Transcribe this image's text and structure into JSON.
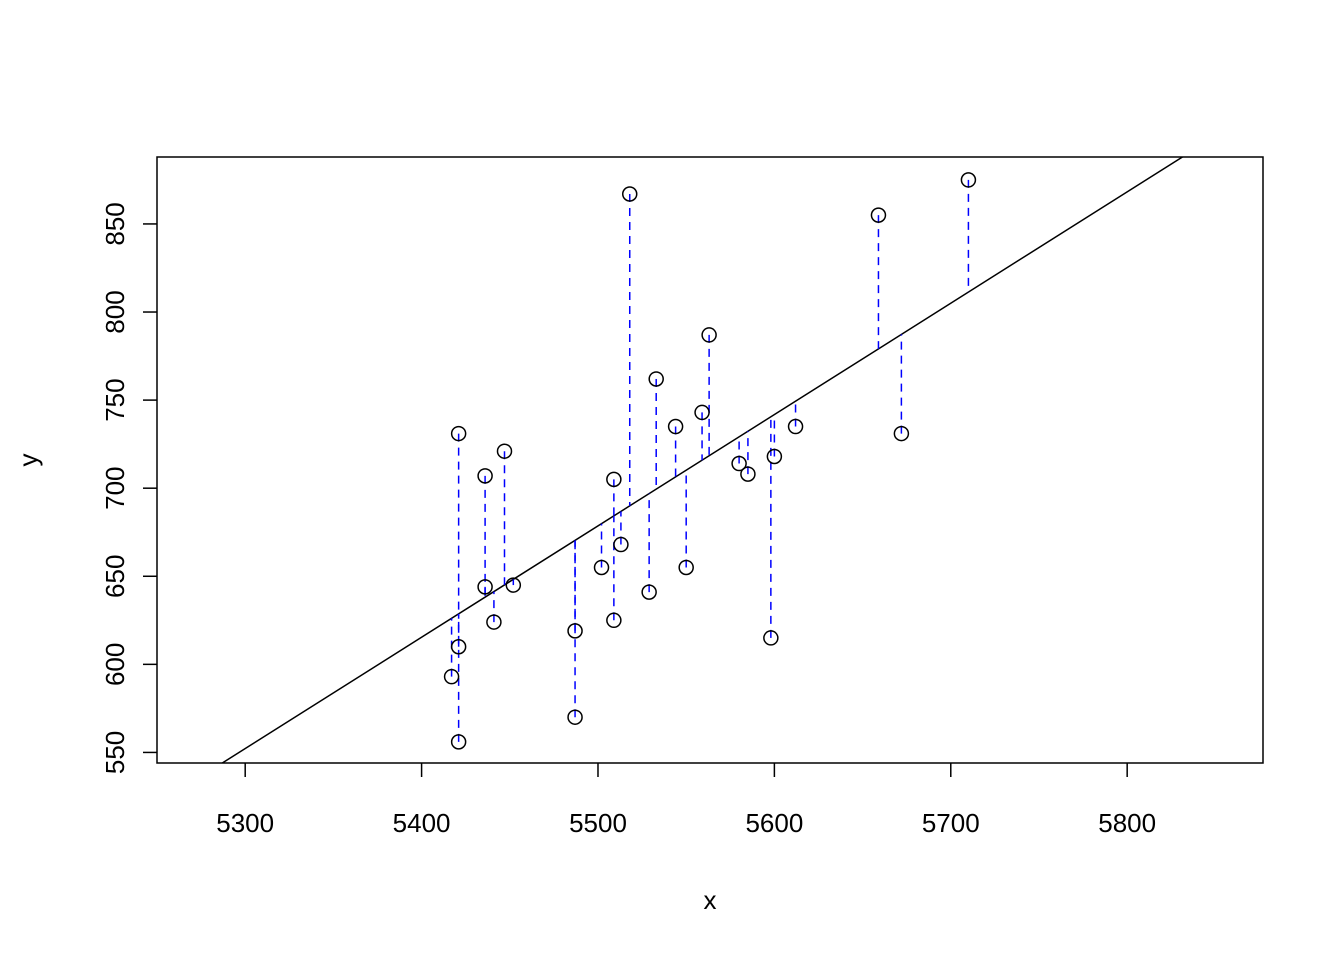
{
  "chart_data": {
    "type": "scatter",
    "x_label": "x",
    "y_label": "y",
    "xlim": [
      5250,
      5877
    ],
    "ylim": [
      544,
      888
    ],
    "xticks": [
      5300,
      5400,
      5500,
      5600,
      5700,
      5800
    ],
    "yticks": [
      550,
      600,
      650,
      700,
      750,
      800,
      850
    ],
    "fit": {
      "intercept": -2797.4,
      "slope": 0.632,
      "color": "#000000"
    },
    "residual_color": "#0000ff",
    "series": [
      {
        "name": null,
        "color": "#000000",
        "x": [
          5421,
          5436,
          5447,
          5436,
          5441,
          5452,
          5421,
          5417,
          5421,
          5487,
          5487,
          5502,
          5509,
          5509,
          5513,
          5518,
          5529,
          5533,
          5544,
          5550,
          5559,
          5563,
          5580,
          5585,
          5598,
          5600,
          5612,
          5659,
          5672,
          5710
        ],
        "values": [
          731,
          707,
          721,
          644,
          624,
          645,
          610,
          593,
          556,
          570,
          619,
          655,
          625,
          705,
          668,
          867,
          641,
          762,
          735,
          655,
          743,
          787,
          714,
          708,
          615,
          718,
          735,
          855,
          731,
          875
        ]
      }
    ]
  }
}
